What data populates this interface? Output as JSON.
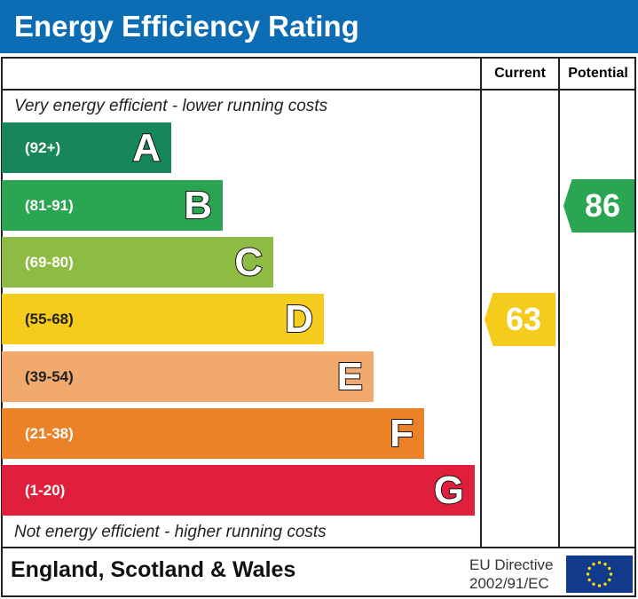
{
  "title": "Energy Efficiency Rating",
  "columns": {
    "current": "Current",
    "potential": "Potential"
  },
  "top_note": "Very energy efficient - lower running costs",
  "bottom_note": "Not energy efficient - higher running costs",
  "footer": {
    "region": "England, Scotland & Wales",
    "directive_line1": "EU Directive",
    "directive_line2": "2002/91/EC"
  },
  "chart_data": {
    "type": "bar",
    "title": "Energy Efficiency Rating",
    "bands": [
      {
        "letter": "A",
        "range": "(92+)",
        "color": "#17865a"
      },
      {
        "letter": "B",
        "range": "(81-91)",
        "color": "#2aa552"
      },
      {
        "letter": "C",
        "range": "(69-80)",
        "color": "#8dbb43"
      },
      {
        "letter": "D",
        "range": "(55-68)",
        "color": "#f5cc1b"
      },
      {
        "letter": "E",
        "range": "(39-54)",
        "color": "#f2a96e"
      },
      {
        "letter": "F",
        "range": "(21-38)",
        "color": "#ec8228"
      },
      {
        "letter": "G",
        "range": "(1-20)",
        "color": "#df1f3b"
      }
    ],
    "current": {
      "value": "63",
      "band": "D",
      "color": "#f5cc1b"
    },
    "potential": {
      "value": "86",
      "band": "B",
      "color": "#2aa552"
    }
  },
  "colors": {
    "header": "#0c6cb4",
    "eu_flag": "#123a8c",
    "eu_stars": "#ffdd00"
  }
}
